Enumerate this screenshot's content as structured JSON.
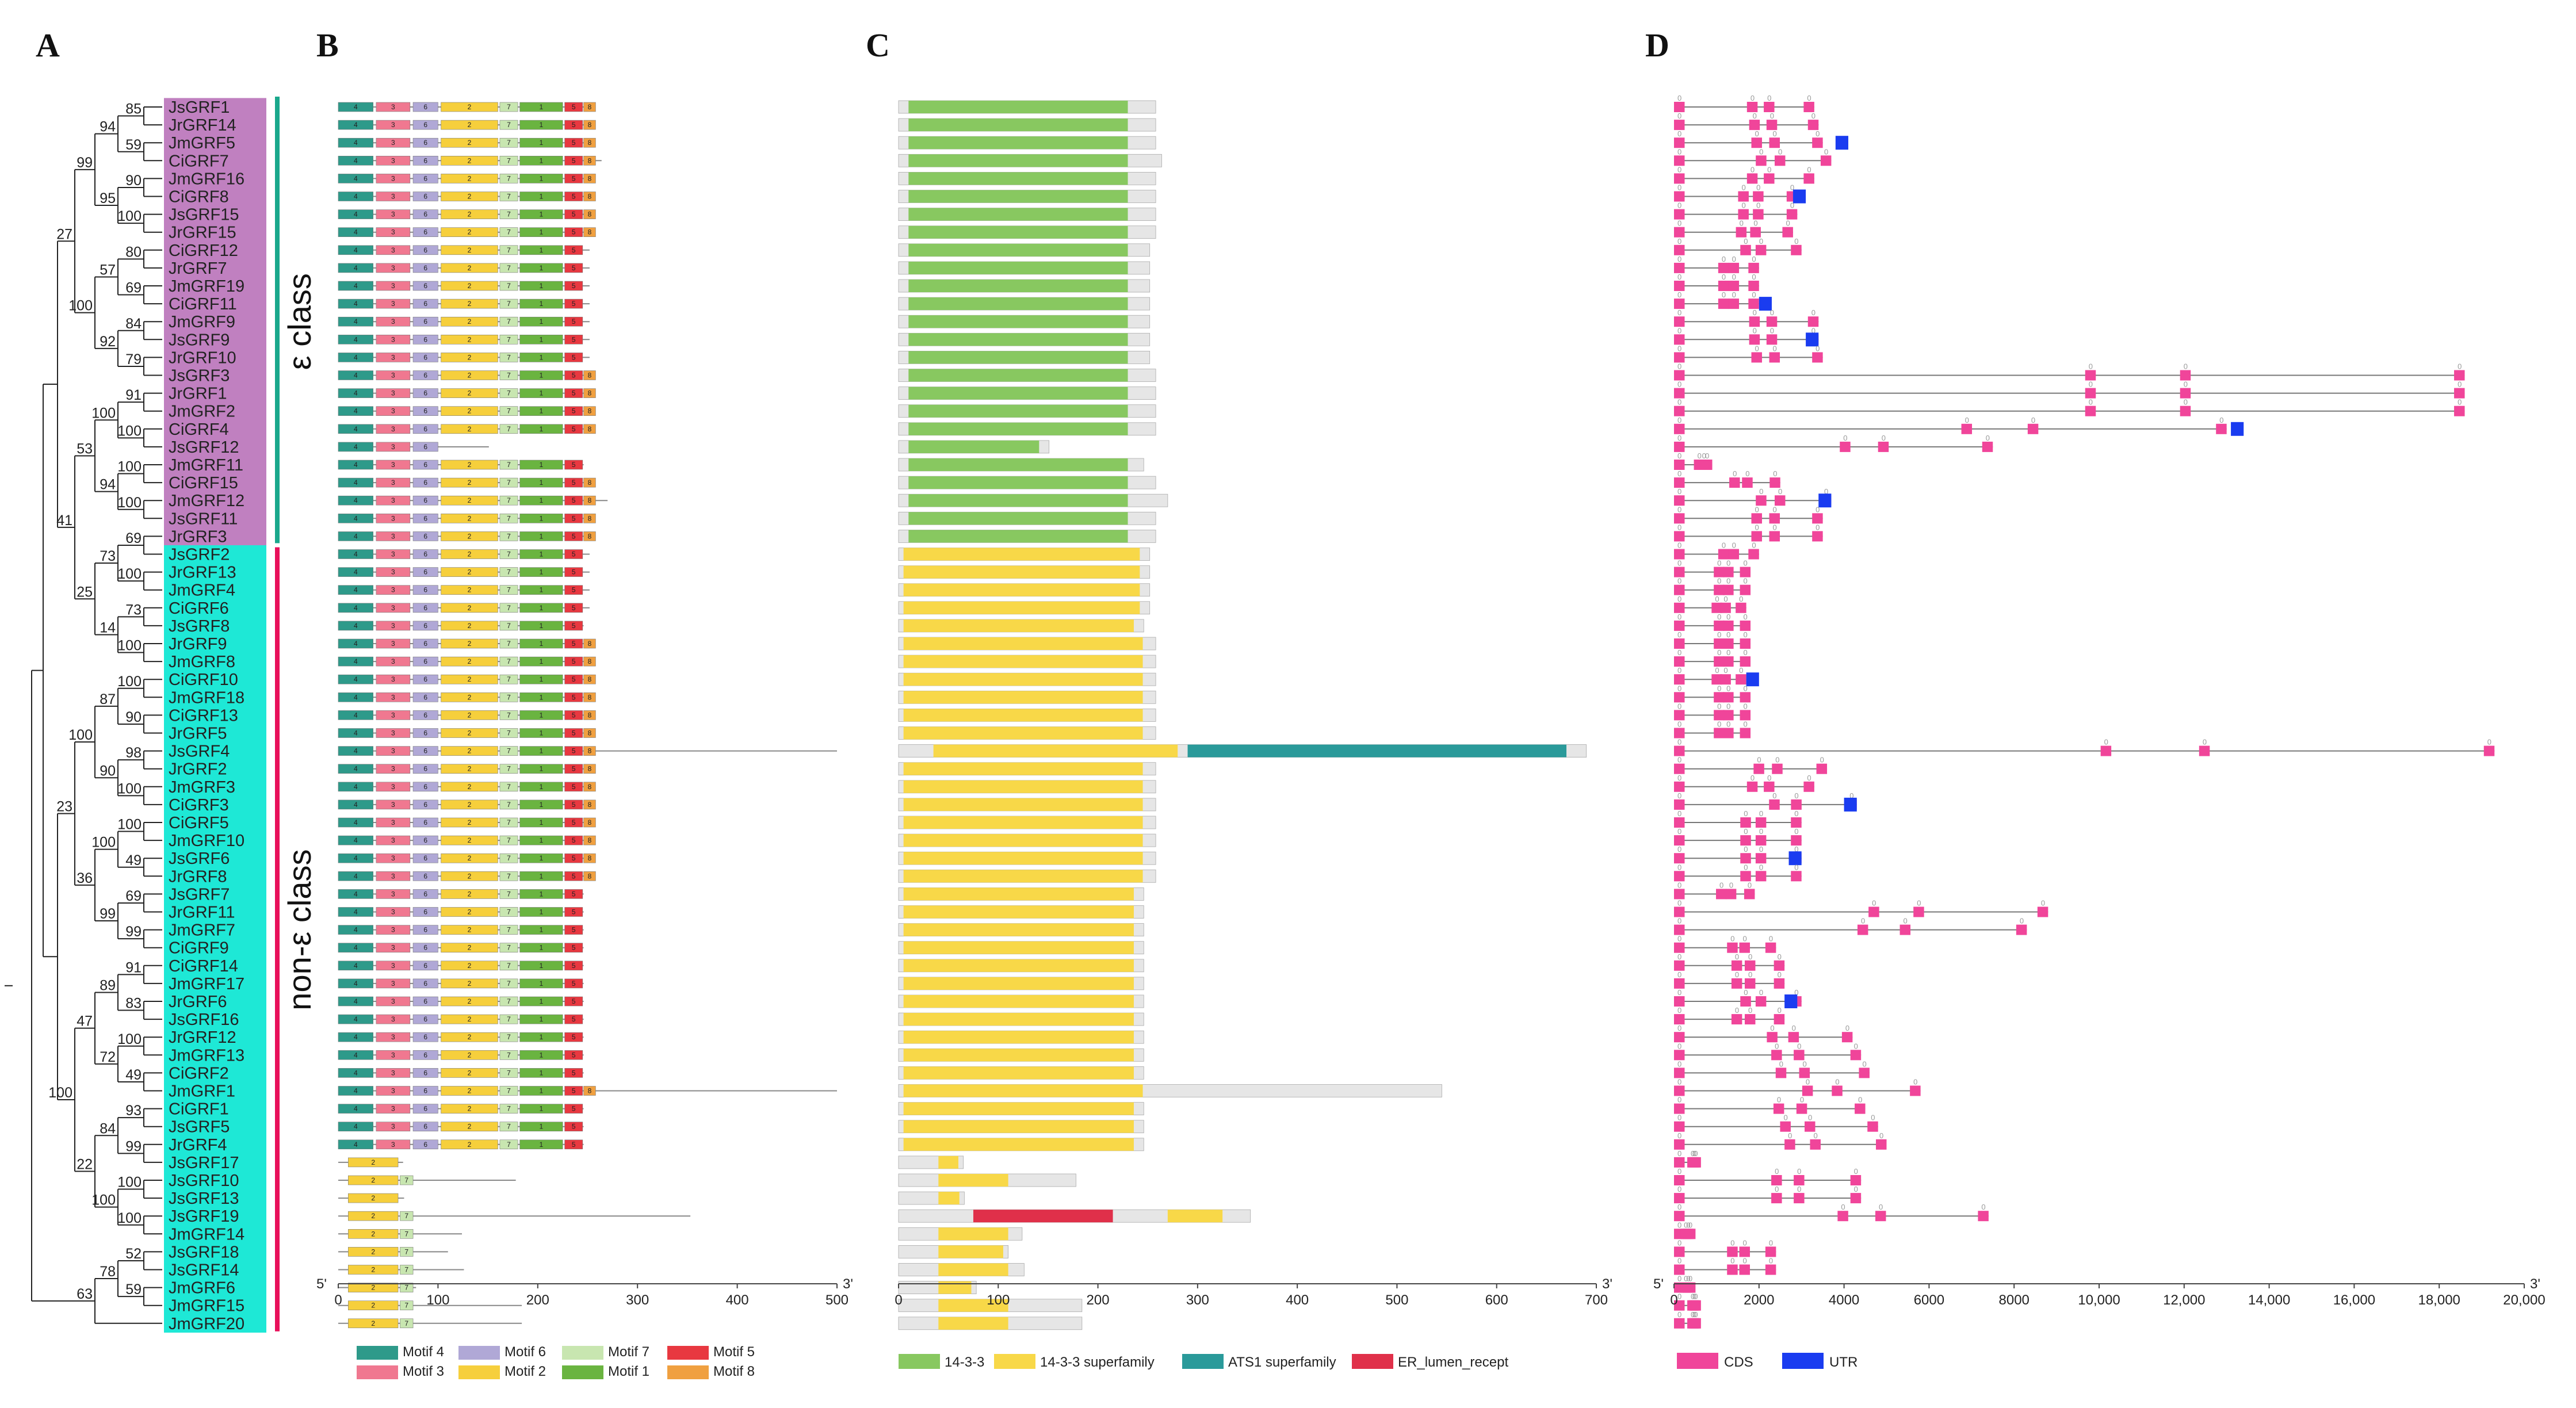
{
  "panels": {
    "a": "A",
    "b": "B",
    "c": "C",
    "d": "D"
  },
  "genes": [
    "JsGRF1",
    "JrGRF14",
    "JmGRF5",
    "CiGRF7",
    "JmGRF16",
    "CiGRF8",
    "JsGRF15",
    "JrGRF15",
    "CiGRF12",
    "JrGRF7",
    "JmGRF19",
    "CiGRF11",
    "JmGRF9",
    "JsGRF9",
    "JrGRF10",
    "JsGRF3",
    "JrGRF1",
    "JmGRF2",
    "CiGRF4",
    "JsGRF12",
    "JmGRF11",
    "CiGRF15",
    "JmGRF12",
    "JsGRF11",
    "JrGRF3",
    "JsGRF2",
    "JrGRF13",
    "JmGRF4",
    "CiGRF6",
    "JsGRF8",
    "JrGRF9",
    "JmGRF8",
    "CiGRF10",
    "JmGRF18",
    "CiGRF13",
    "JrGRF5",
    "JsGRF4",
    "JrGRF2",
    "JmGRF3",
    "CiGRF3",
    "CiGRF5",
    "JmGRF10",
    "JsGRF6",
    "JrGRF8",
    "JsGRF7",
    "JrGRF11",
    "JmGRF7",
    "CiGRF9",
    "CiGRF14",
    "JmGRF17",
    "JrGRF6",
    "JsGRF16",
    "JrGRF12",
    "JmGRF13",
    "CiGRF2",
    "JmGRF1",
    "CiGRF1",
    "JsGRF5",
    "JrGRF4",
    "JsGRF17",
    "JsGRF10",
    "JsGRF13",
    "JsGRF19",
    "JmGRF14",
    "JsGRF18",
    "JsGRF14",
    "JmGRF6",
    "JmGRF15",
    "JmGRF20"
  ],
  "bootstrap": [
    "85",
    "59",
    "90",
    "100",
    "80",
    "69",
    "84",
    "79",
    "91",
    "100",
    "100",
    "100",
    "69",
    "100",
    "73",
    "100",
    "100",
    "90",
    "98",
    "100",
    "100",
    "49",
    "69",
    "99",
    "91",
    "83",
    "100",
    "49",
    "93",
    "99",
    "100",
    "100",
    "52",
    "59",
    "94",
    "95",
    "57",
    "92",
    "100",
    "94",
    "73",
    "14",
    "87",
    "90",
    "100",
    "99",
    "89",
    "72",
    "84",
    "100",
    "78",
    "99",
    "100",
    "53",
    "25",
    "100",
    "36",
    "47",
    "22",
    "63",
    "27",
    "41",
    "23",
    "100"
  ],
  "classes": {
    "epsilon": "ε class",
    "non_epsilon": "non-ε class"
  },
  "colors": {
    "epsilon": "#c080c0",
    "non_epsilon": "#1ee8d6",
    "epsilon_bar": "#1aa88c",
    "non_epsilon_bar": "#e8105a"
  },
  "prime": {
    "five": "5'",
    "three": "3'"
  },
  "panel_b": {
    "axis_ticks": [
      "0",
      "100",
      "200",
      "300",
      "400",
      "500"
    ],
    "legend": [
      "Motif 4",
      "Motif 6",
      "Motif 7",
      "Motif 5",
      "Motif 3",
      "Motif 2",
      "Motif 1",
      "Motif 8"
    ],
    "legend_colors": [
      "#2e9a8a",
      "#b0a8d6",
      "#c8e6b0",
      "#e83840",
      "#f07890",
      "#f6cf3c",
      "#6ab440",
      "#f0a040"
    ]
  },
  "panel_c": {
    "axis_ticks": [
      "0",
      "100",
      "200",
      "300",
      "400",
      "500",
      "600",
      "700"
    ],
    "legend": [
      "14-3-3",
      "14-3-3 superfamily",
      "ATS1 superfamily",
      "ER_lumen_recept"
    ],
    "legend_colors": [
      "#88c860",
      "#f8d848",
      "#2a9a9a",
      "#e0304a"
    ]
  },
  "panel_d": {
    "axis_ticks": [
      "0",
      "2000",
      "4000",
      "6000",
      "8000",
      "10,000",
      "12,000",
      "14,000",
      "16,000",
      "18,000",
      "20,000"
    ],
    "legend": [
      "CDS",
      "UTR"
    ],
    "legend_colors": [
      "#f0459a",
      "#1a3cf0"
    ]
  },
  "protein_lengths": [
    258,
    258,
    258,
    264,
    258,
    258,
    258,
    258,
    252,
    252,
    252,
    252,
    252,
    252,
    252,
    258,
    258,
    258,
    258,
    151,
    246,
    258,
    270,
    258,
    258,
    252,
    252,
    252,
    252,
    246,
    258,
    258,
    258,
    258,
    258,
    258,
    500,
    258,
    258,
    258,
    258,
    258,
    258,
    258,
    246,
    246,
    246,
    246,
    246,
    246,
    246,
    246,
    246,
    246,
    246,
    500,
    246,
    246,
    246,
    65,
    178,
    66,
    353,
    124,
    110,
    126,
    78,
    184,
    184
  ],
  "protein_align_lengths": [
    258,
    258,
    258,
    264,
    258,
    258,
    258,
    258,
    252,
    252,
    252,
    252,
    252,
    252,
    252,
    258,
    258,
    258,
    258,
    151,
    246,
    258,
    270,
    258,
    258,
    252,
    252,
    252,
    252,
    246,
    258,
    258,
    258,
    258,
    258,
    258,
    690,
    258,
    258,
    258,
    258,
    258,
    258,
    258,
    246,
    246,
    246,
    246,
    246,
    246,
    246,
    246,
    246,
    246,
    246,
    545,
    246,
    246,
    246,
    65,
    178,
    66,
    353,
    124,
    110,
    126,
    78,
    184,
    184
  ],
  "gene_lengths": [
    3300,
    3400,
    3500,
    3700,
    3300,
    2900,
    2900,
    2800,
    3000,
    2000,
    2000,
    2000,
    3400,
    3400,
    3500,
    18600,
    18600,
    18600,
    13000,
    7500,
    900,
    2500,
    3700,
    3500,
    3500,
    2000,
    1800,
    1800,
    1700,
    1800,
    1800,
    1800,
    1700,
    1800,
    1800,
    1800,
    19300,
    3600,
    3300,
    4300,
    3000,
    3000,
    3000,
    3000,
    1900,
    8800,
    8300,
    2400,
    2600,
    2600,
    3000,
    2600,
    4200,
    4400,
    4600,
    5800,
    4500,
    4800,
    5000,
    600,
    4400,
    4400,
    7400,
    400,
    2400,
    2400,
    400,
    600,
    600
  ],
  "gene_utr_end": [
    0,
    0,
    4100,
    0,
    0,
    3100,
    0,
    0,
    0,
    0,
    0,
    2300,
    0,
    3400,
    0,
    0,
    0,
    0,
    13400,
    0,
    0,
    0,
    3700,
    0,
    0,
    0,
    0,
    0,
    0,
    0,
    0,
    0,
    2000,
    0,
    0,
    0,
    0,
    0,
    0,
    4300,
    0,
    0,
    3000,
    0,
    0,
    0,
    0,
    0,
    0,
    0,
    2900,
    0,
    0,
    0,
    0,
    0,
    0,
    0,
    0,
    0,
    0,
    0,
    0,
    0,
    0,
    0,
    0,
    0,
    0
  ]
}
